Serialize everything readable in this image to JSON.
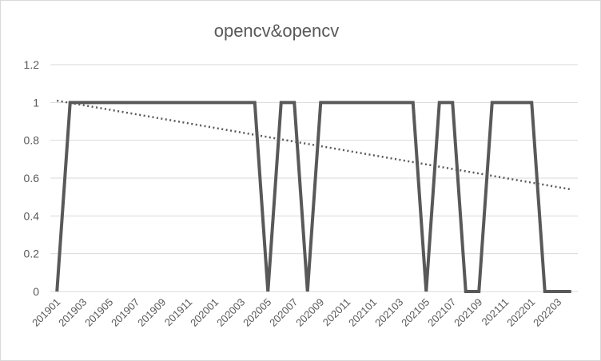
{
  "chart_data": {
    "type": "line",
    "title": "opencv&opencv",
    "xlabel": "",
    "ylabel": "",
    "ylim": [
      0,
      1.2
    ],
    "yticks": [
      "0",
      "0.2",
      "0.4",
      "0.6",
      "0.8",
      "1",
      "1.2"
    ],
    "grid": true,
    "legend": "none",
    "x": [
      "201901",
      "201902",
      "201903",
      "201904",
      "201905",
      "201906",
      "201907",
      "201908",
      "201909",
      "201910",
      "201911",
      "201912",
      "202001",
      "202002",
      "202003",
      "202004",
      "202005",
      "202006",
      "202007",
      "202008",
      "202009",
      "202010",
      "202011",
      "202012",
      "202101",
      "202102",
      "202103",
      "202104",
      "202105",
      "202106",
      "202107",
      "202108",
      "202109",
      "202110",
      "202111",
      "202112",
      "202201",
      "202202",
      "202203",
      "202204"
    ],
    "xtick_labels": [
      "201901",
      "201903",
      "201905",
      "201907",
      "201909",
      "201911",
      "202001",
      "202003",
      "202005",
      "202007",
      "202009",
      "202011",
      "202101",
      "202103",
      "202105",
      "202107",
      "202109",
      "202111",
      "202201",
      "202203"
    ],
    "series": [
      {
        "values": [
          0,
          1,
          1,
          1,
          1,
          1,
          1,
          1,
          1,
          1,
          1,
          1,
          1,
          1,
          1,
          1,
          0,
          1,
          1,
          0,
          1,
          1,
          1,
          1,
          1,
          1,
          1,
          1,
          0,
          1,
          1,
          0,
          0,
          1,
          1,
          1,
          1,
          0,
          0,
          0
        ],
        "color": "#595959"
      }
    ],
    "trendline": {
      "type": "linear",
      "start": 1.01,
      "end": 0.54,
      "color": "#595959"
    }
  }
}
